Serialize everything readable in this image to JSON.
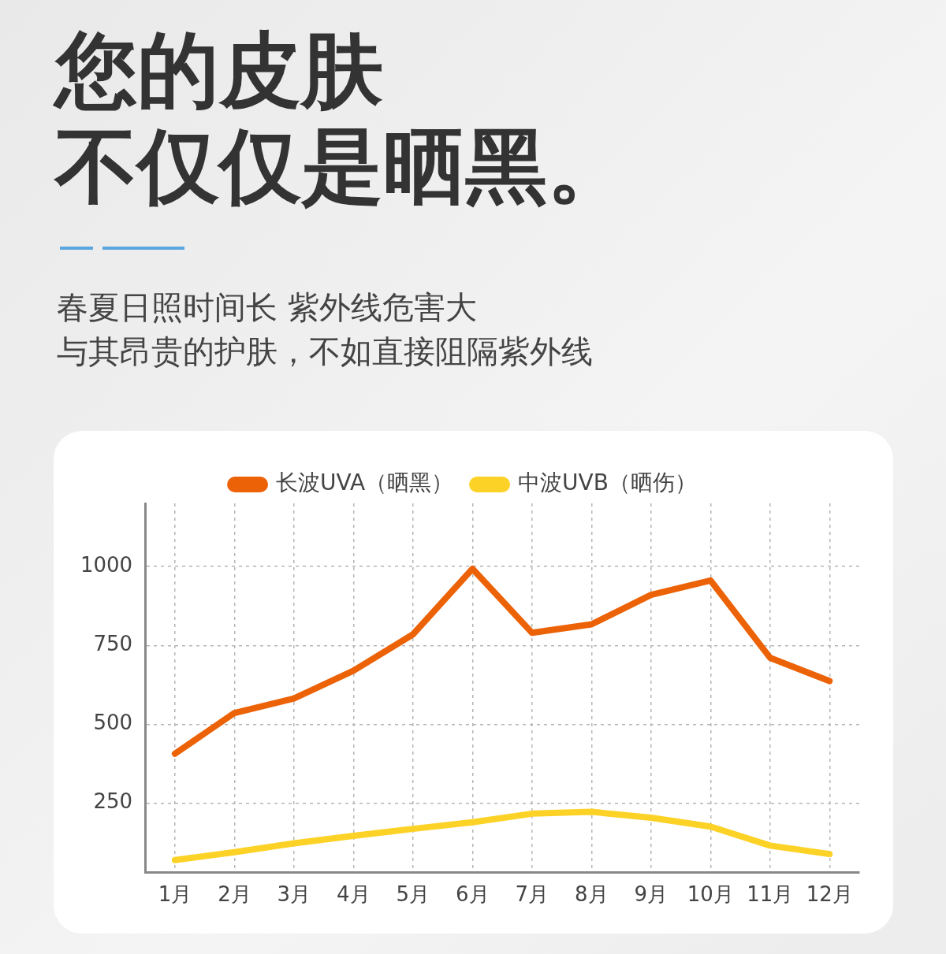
{
  "chart_data": {
    "type": "line",
    "title": "您的皮肤不仅仅是晒黑。",
    "subtitle": "春夏日照时间长 紫外线危害大与其昂贵的护肤，不如直接阻隔紫外线",
    "categories": [
      "1月",
      "2月",
      "3月",
      "4月",
      "5月",
      "6月",
      "7月",
      "8月",
      "9月",
      "10月",
      "11月",
      "12月"
    ],
    "series": [
      {
        "name": "长波UVA（晒黑）",
        "color": "#ec6207",
        "values": [
          407,
          536,
          582,
          670,
          785,
          993,
          790,
          817,
          910,
          956,
          711,
          637
        ]
      },
      {
        "name": "中波UVB（晒伤）",
        "color": "#fdd226",
        "values": [
          70,
          95,
          123,
          147,
          169,
          190,
          217,
          223,
          204,
          176,
          116,
          89
        ]
      }
    ],
    "ylim": [
      30,
      1200
    ],
    "yticks": [
      250,
      500,
      750,
      1000
    ],
    "grid": true,
    "legend": "top",
    "marker": "none",
    "line_style": "solid"
  }
}
